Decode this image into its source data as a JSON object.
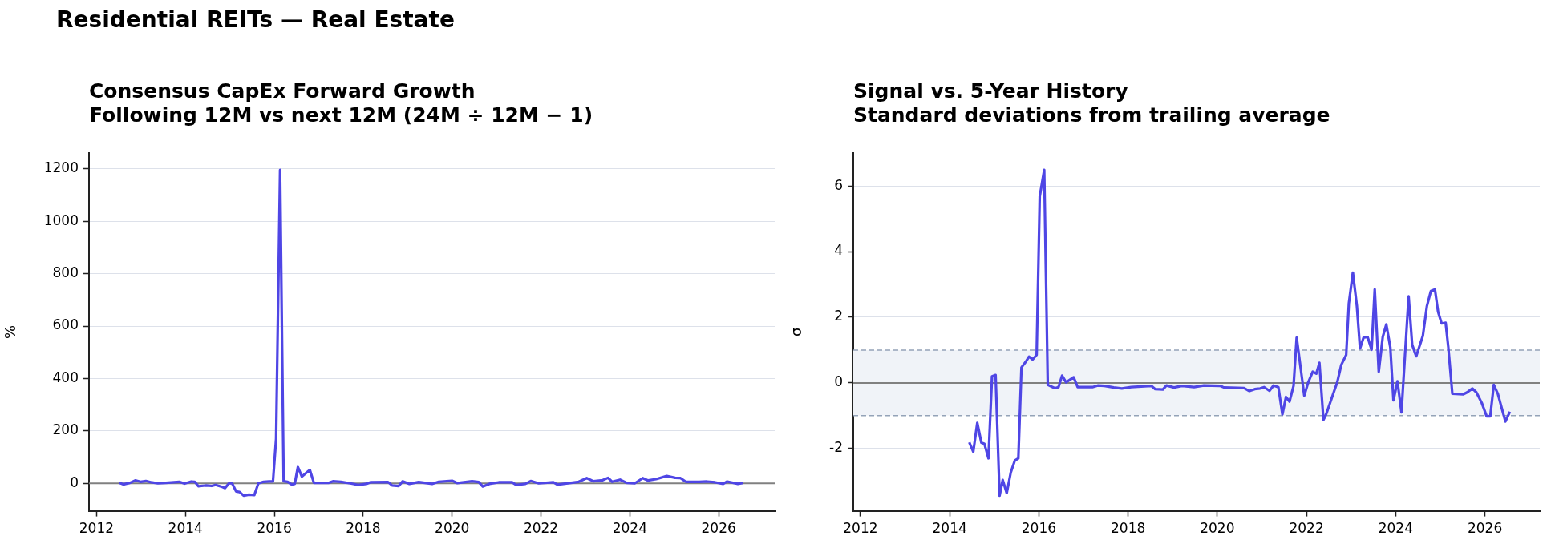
{
  "chart_data": [
    {
      "type": "line",
      "title": "Consensus CapEx Forward Growth",
      "subtitle": "Following 12M vs next 12M (24M ÷ 12M − 1)",
      "ylabel": "%",
      "annotations": [
        "Residential REITs — Real Estate"
      ],
      "x": [
        2012.51,
        2012.6,
        2012.75,
        2012.87,
        2012.99,
        2013.11,
        2013.23,
        2013.38,
        2013.56,
        2013.86,
        2013.98,
        2014.13,
        2014.21,
        2014.29,
        2014.47,
        2014.59,
        2014.68,
        2014.83,
        2014.89,
        2014.98,
        2015.05,
        2015.14,
        2015.22,
        2015.31,
        2015.43,
        2015.55,
        2015.64,
        2015.76,
        2015.88,
        2015.97,
        2016.04,
        2016.13,
        2016.21,
        2016.3,
        2016.39,
        2016.46,
        2016.53,
        2016.62,
        2016.8,
        2016.89,
        2017.23,
        2017.32,
        2017.5,
        2017.71,
        2017.89,
        2018.07,
        2018.16,
        2018.56,
        2018.65,
        2018.8,
        2018.89,
        2019.04,
        2019.25,
        2019.55,
        2019.7,
        2020.0,
        2020.12,
        2020.45,
        2020.6,
        2020.69,
        2020.84,
        2021.05,
        2021.35,
        2021.44,
        2021.65,
        2021.77,
        2021.95,
        2022.28,
        2022.37,
        2022.85,
        2023.03,
        2023.18,
        2023.39,
        2023.51,
        2023.6,
        2023.78,
        2023.93,
        2024.11,
        2024.29,
        2024.41,
        2024.59,
        2024.83,
        2025.02,
        2025.14,
        2025.26,
        2025.56,
        2025.74,
        2025.92,
        2026.1,
        2026.19,
        2026.43,
        2026.55
      ],
      "series": [
        {
          "color": "#4f46e5",
          "values": [
            2,
            -4,
            2,
            11,
            6,
            9,
            4,
            0,
            2,
            6,
            -1,
            7,
            6,
            -11,
            -8,
            -10,
            -6,
            -14,
            -18,
            0,
            0,
            -31,
            -33,
            -47,
            -43,
            -45,
            0,
            6,
            7,
            7,
            170,
            1196,
            8,
            6,
            -4,
            -2,
            62,
            26,
            51,
            2,
            2,
            8,
            6,
            0,
            -6,
            -2,
            4,
            5,
            -8,
            -10,
            8,
            -2,
            5,
            -2,
            6,
            10,
            1,
            8,
            5,
            -12,
            -2,
            4,
            4,
            -6,
            -2,
            9,
            0,
            4,
            -5,
            6,
            20,
            8,
            12,
            21,
            6,
            14,
            2,
            0,
            20,
            11,
            16,
            28,
            21,
            20,
            6,
            6,
            7,
            4,
            -2,
            7,
            -2,
            2
          ]
        }
      ],
      "xlim": [
        2011.83,
        2027.26
      ],
      "xticks": [
        2012,
        2014,
        2016,
        2018,
        2020,
        2022,
        2024,
        2026
      ],
      "ylim": [
        -105,
        1260
      ],
      "yticks": [
        0,
        200,
        400,
        600,
        800,
        1000,
        1200
      ],
      "grid": "y",
      "ref_lines": [
        {
          "axis": "y",
          "value": 0,
          "color": "#808080",
          "line_style": "solid"
        }
      ]
    },
    {
      "type": "line",
      "title": "Signal vs. 5-Year History",
      "subtitle": "Standard deviations from trailing average",
      "ylabel": "σ",
      "x": [
        2014.44,
        2014.53,
        2014.62,
        2014.71,
        2014.78,
        2014.87,
        2014.95,
        2015.03,
        2015.12,
        2015.19,
        2015.28,
        2015.37,
        2015.46,
        2015.54,
        2015.61,
        2015.7,
        2015.78,
        2015.86,
        2015.95,
        2016.02,
        2016.12,
        2016.2,
        2016.36,
        2016.44,
        2016.52,
        2016.61,
        2016.78,
        2016.87,
        2017.2,
        2017.32,
        2017.47,
        2017.68,
        2017.86,
        2018.07,
        2018.52,
        2018.61,
        2018.78,
        2018.86,
        2019.03,
        2019.21,
        2019.48,
        2019.7,
        2020.06,
        2020.15,
        2020.6,
        2020.72,
        2020.84,
        2020.96,
        2021.05,
        2021.17,
        2021.26,
        2021.37,
        2021.46,
        2021.54,
        2021.62,
        2021.71,
        2021.78,
        2021.95,
        2022.04,
        2022.14,
        2022.22,
        2022.29,
        2022.38,
        2022.44,
        2022.57,
        2022.69,
        2022.78,
        2022.89,
        2022.95,
        2023.04,
        2023.13,
        2023.2,
        2023.28,
        2023.37,
        2023.46,
        2023.53,
        2023.62,
        2023.71,
        2023.79,
        2023.88,
        2023.95,
        2024.04,
        2024.13,
        2024.29,
        2024.37,
        2024.46,
        2024.61,
        2024.7,
        2024.79,
        2024.88,
        2024.95,
        2025.03,
        2025.12,
        2025.18,
        2025.27,
        2025.51,
        2025.6,
        2025.72,
        2025.81,
        2025.93,
        2026.04,
        2026.12,
        2026.2,
        2026.29,
        2026.46,
        2026.56
      ],
      "series": [
        {
          "color": "#4f46e5",
          "values": [
            -1.81,
            -2.1,
            -1.22,
            -1.82,
            -1.86,
            -2.3,
            0.2,
            0.24,
            -3.44,
            -2.96,
            -3.36,
            -2.73,
            -2.37,
            -2.3,
            0.47,
            0.63,
            0.8,
            0.71,
            0.85,
            5.68,
            6.49,
            -0.06,
            -0.16,
            -0.13,
            0.22,
            0.02,
            0.17,
            -0.13,
            -0.13,
            -0.08,
            -0.09,
            -0.14,
            -0.17,
            -0.13,
            -0.09,
            -0.19,
            -0.2,
            -0.08,
            -0.14,
            -0.09,
            -0.13,
            -0.08,
            -0.09,
            -0.14,
            -0.16,
            -0.25,
            -0.19,
            -0.17,
            -0.13,
            -0.24,
            -0.08,
            -0.13,
            -0.96,
            -0.43,
            -0.57,
            -0.09,
            1.38,
            -0.39,
            0.02,
            0.34,
            0.28,
            0.61,
            -1.13,
            -0.96,
            -0.45,
            0.02,
            0.55,
            0.85,
            2.42,
            3.36,
            2.34,
            1.05,
            1.38,
            1.4,
            1.01,
            2.85,
            0.34,
            1.4,
            1.78,
            1.08,
            -0.53,
            0.05,
            -0.9,
            2.64,
            1.16,
            0.81,
            1.44,
            2.34,
            2.8,
            2.85,
            2.17,
            1.81,
            1.83,
            1.08,
            -0.33,
            -0.35,
            -0.29,
            -0.17,
            -0.29,
            -0.61,
            -1.02,
            -1.02,
            -0.06,
            -0.33,
            -1.18,
            -0.88
          ]
        }
      ],
      "xlim": [
        2011.84,
        2027.23
      ],
      "xticks": [
        2012,
        2014,
        2016,
        2018,
        2020,
        2022,
        2024,
        2026
      ],
      "ylim": [
        -3.9,
        7.0
      ],
      "yticks": [
        -2,
        0,
        2,
        4,
        6
      ],
      "grid": "y",
      "bands": [
        {
          "axis": "y",
          "from": -1,
          "to": 1,
          "color": "#f0f3f8"
        }
      ],
      "ref_lines": [
        {
          "axis": "y",
          "value": 0,
          "color": "#808080",
          "line_style": "solid"
        },
        {
          "axis": "y",
          "value": 1,
          "color": "#94a3b8",
          "line_style": "dashed"
        },
        {
          "axis": "y",
          "value": -1,
          "color": "#94a3b8",
          "line_style": "dashed"
        }
      ]
    }
  ]
}
